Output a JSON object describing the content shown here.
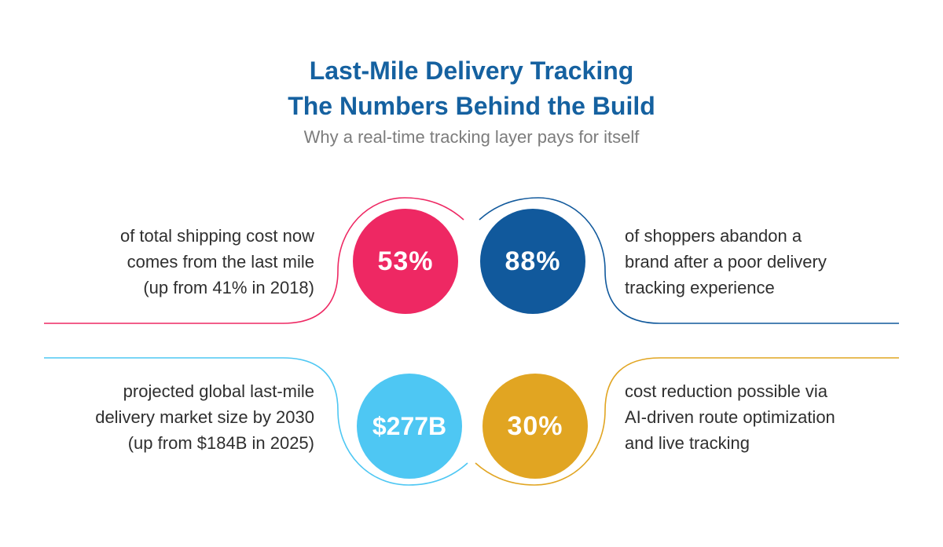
{
  "header": {
    "title_line1": "Last-Mile Delivery Tracking",
    "title_line2": "The Numbers Behind the Build",
    "subtitle": "Why a real-time tracking layer pays for itself"
  },
  "stats": [
    {
      "value": "53%",
      "color": "#ee2863",
      "lines": [
        "of total shipping cost now",
        "comes from the last mile",
        "(up from 41% in 2018)"
      ]
    },
    {
      "value": "88%",
      "color": "#11599c",
      "lines": [
        "of shoppers abandon a",
        "brand after a poor delivery",
        "tracking experience"
      ]
    },
    {
      "value": "$277B",
      "color": "#4ec7f3",
      "lines": [
        "projected global last-mile",
        "delivery market size by 2030",
        "(up from $184B in 2025)"
      ]
    },
    {
      "value": "30%",
      "color": "#e1a522",
      "lines": [
        "cost reduction possible via",
        "AI-driven route optimization",
        "and live tracking"
      ]
    }
  ]
}
